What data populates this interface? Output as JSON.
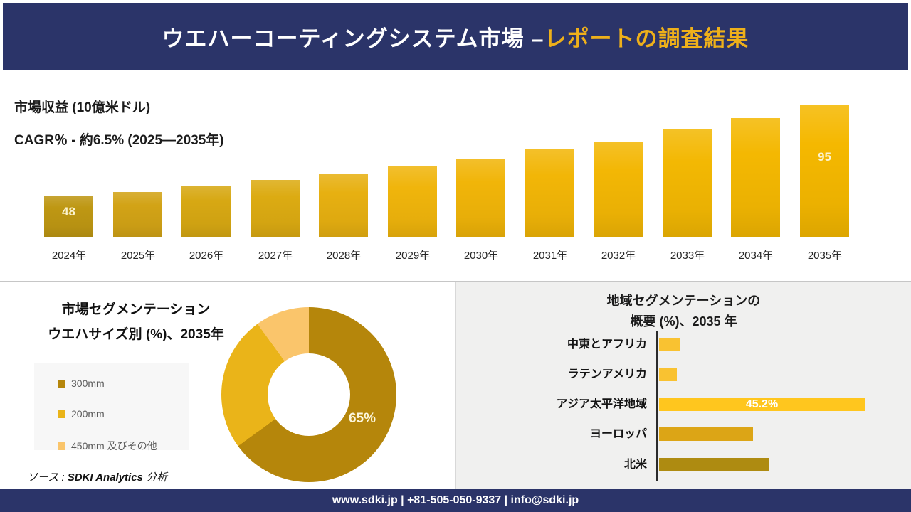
{
  "header": {
    "title_white": "ウエハーコーティングシステム市場 –",
    "title_accent": "レポートの調査結果"
  },
  "chart_data": [
    {
      "id": "market-revenue",
      "type": "bar",
      "title": "市場収益 (10億米ドル)",
      "subtitle": "CAGR％ - 約6.5% (2025―2035年)",
      "categories": [
        "2024年",
        "2025年",
        "2026年",
        "2027年",
        "2028年",
        "2029年",
        "2030年",
        "2031年",
        "2032年",
        "2033年",
        "2034年",
        "2035年"
      ],
      "values": [
        48,
        50,
        53,
        56,
        59,
        63,
        67,
        72,
        76,
        82,
        88,
        95
      ],
      "value_labels": {
        "0": "48",
        "11": "95"
      },
      "bar_colors": [
        "#BE9713",
        "#D2A316",
        "#D7A813",
        "#DCAB12",
        "#E7B011",
        "#F0B50C",
        "#F1B509",
        "#F2B607",
        "#F3B705",
        "#F3B803",
        "#F4B802",
        "#F5B800"
      ],
      "ylim": [
        0,
        100
      ],
      "grid": false,
      "legend_position": "none"
    },
    {
      "id": "wafer-size-share",
      "type": "donut",
      "title": "市場セグメンテーション",
      "subtitle": "ウエハサイズ別 (%)、2035年",
      "slices": [
        {
          "label": "300mm",
          "value": 65,
          "color": "#B5860B"
        },
        {
          "label": "200mm",
          "value": 25,
          "color": "#EAB419"
        },
        {
          "label": "450mm 及びその他",
          "value": 10,
          "color": "#FAC56B"
        }
      ],
      "shown_label": "65%",
      "legend_position": "left"
    },
    {
      "id": "regional-overview",
      "type": "bar-horizontal",
      "title_line1": "地域セグメンテーションの",
      "title_line2": "概要 (%)、2035 年",
      "categories": [
        "中東とアフリカ",
        "ラテンアメリカ",
        "アジア太平洋地域",
        "ヨーロッパ",
        "北米"
      ],
      "values": [
        4.7,
        3.9,
        45.2,
        20.7,
        24.3
      ],
      "value_labels": {
        "2": "45.2%"
      },
      "colors": [
        "#F9C231",
        "#F9C231",
        "#FFC61E",
        "#DCA516",
        "#AE8B11"
      ],
      "xmax": 45.2,
      "grid": false
    }
  ],
  "source_note": {
    "prefix": "ソース : ",
    "brand": "SDKI Analytics",
    "suffix": " 分析"
  },
  "footer": {
    "text": "www.sdki.jp | +81-505-050-9337 | info@sdki.jp"
  },
  "colors": {
    "navy": "#2B3469",
    "accent_yellow": "#EEB01A",
    "panel_gray": "#F0F0EF",
    "value_label_cream": "#FBF3CF"
  }
}
